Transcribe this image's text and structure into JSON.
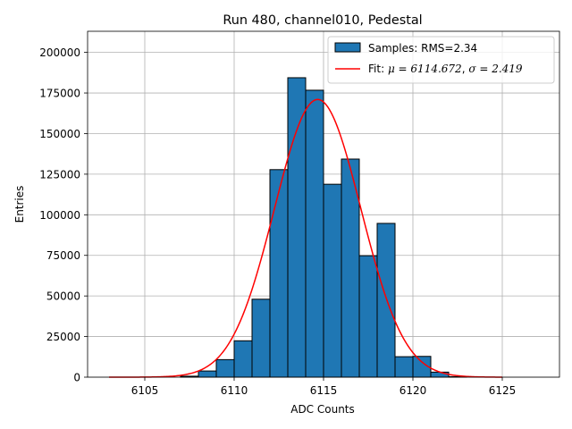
{
  "chart_data": {
    "type": "bar",
    "title": "Run 480, channel010, Pedestal",
    "xlabel": "ADC Counts",
    "ylabel": "Entries",
    "xlim": [
      6101.8,
      6128.2
    ],
    "ylim": [
      0,
      213000
    ],
    "grid": true,
    "legend_position": "upper right",
    "xticks": [
      6105,
      6110,
      6115,
      6120,
      6125
    ],
    "yticks": [
      0,
      25000,
      50000,
      75000,
      100000,
      125000,
      150000,
      175000,
      200000
    ],
    "histogram": {
      "name": "Samples: RMS=2.34",
      "bin_width": 1,
      "bin_starts": [
        6107,
        6108,
        6109,
        6110,
        6111,
        6112,
        6113,
        6114,
        6115,
        6116,
        6117,
        6118,
        6119,
        6120,
        6121,
        6122
      ],
      "counts": [
        600,
        3800,
        10800,
        22400,
        48000,
        127800,
        184400,
        176700,
        118800,
        134300,
        74800,
        94700,
        12600,
        12800,
        3100,
        300
      ],
      "color": "#1f77b4",
      "edge_color": "#000000"
    },
    "fit": {
      "name": "Fit: μ = 6114.672, σ = 2.419",
      "legend_mu": "μ = 6114.672",
      "legend_sigma": "σ = 2.419",
      "mu": 6114.672,
      "sigma": 2.419,
      "amplitude": 171000,
      "x_range": [
        6103,
        6125
      ],
      "color": "#ff0000"
    }
  }
}
